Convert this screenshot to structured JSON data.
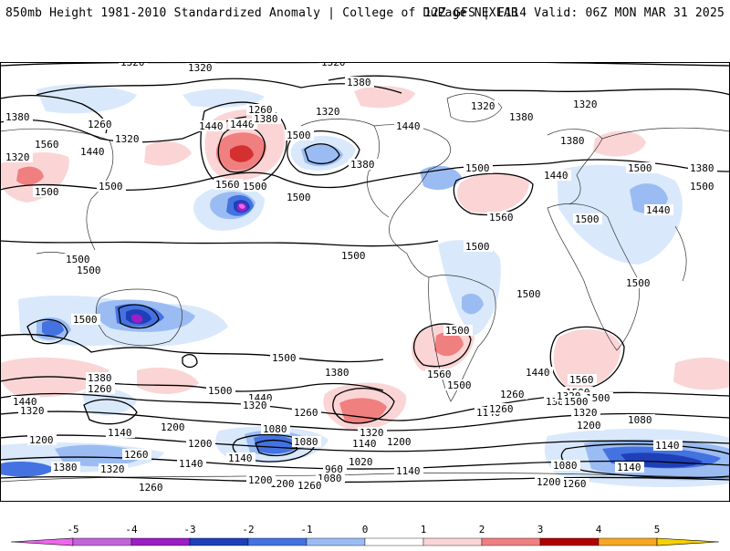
{
  "header": {
    "title": "850mb Height 1981-2010 Standardized Anomaly | College of DuPage NEXLAB",
    "run_info": "12Z GFS | F114 Valid: 06Z MON MAR 31 2025"
  },
  "map": {
    "contour_labels": {
      "c1": "1320",
      "c2": "1320",
      "c3": "1320",
      "c4": "1380",
      "c5": "1380",
      "c6": "1260",
      "c7": "1320",
      "c8": "1260",
      "c9": "1440",
      "c10": "1380",
      "c11": "1320",
      "c12": "1560",
      "c13": "1440",
      "c14": "1500",
      "c15": "1500",
      "c16": "1560",
      "c17": "1500",
      "c18": "1500",
      "c19": "1380",
      "c20": "1500",
      "c21": "1440",
      "c22": "1320",
      "c23": "1380",
      "c24": "1320",
      "c25": "1380",
      "c26": "1440",
      "c27": "1500",
      "c28": "1380",
      "c29": "1560",
      "c30": "1500",
      "c31": "1440",
      "c32": "1500",
      "c33": "1500",
      "c34": "1500",
      "c35": "1500",
      "c36": "1500",
      "c37": "1500",
      "c38": "1500",
      "c39": "1500",
      "c40": "1500",
      "c41": "1500",
      "c42": "1380",
      "c43": "1260",
      "c44": "1440",
      "c45": "1320",
      "c46": "1500",
      "c47": "1440",
      "c48": "1320",
      "c49": "1260",
      "c50": "1380",
      "c51": "1560",
      "c52": "1500",
      "c53": "1560",
      "c54": "1500",
      "c55": "1440",
      "c56": "1380",
      "c57": "1320",
      "c58": "1260",
      "c59": "1200",
      "c60": "1140",
      "c61": "1200",
      "c62": "1080",
      "c63": "1320",
      "c64": "1200",
      "c65": "1140",
      "c66": "1140",
      "c67": "1200",
      "c68": "1080",
      "c69": "1260",
      "c70": "1140",
      "c71": "1020",
      "c72": "960",
      "c73": "1080",
      "c74": "1140",
      "c75": "1200",
      "c76": "1200",
      "c77": "1260",
      "c78": "1380",
      "c79": "1320",
      "c80": "1260",
      "c81": "1080",
      "c82": "1140",
      "c83": "1260",
      "c84": "1200",
      "c85": "1140",
      "c86": "1080",
      "c87": "1200",
      "c88": "1260",
      "c89": "1140",
      "c90": "1500",
      "c91": "1500",
      "c92": "1440",
      "c93": "1320",
      "c94": "1320",
      "c95": "1500"
    }
  },
  "colorbar": {
    "ticks": [
      "-5",
      "-4",
      "-3",
      "-2",
      "-1",
      "0",
      "1",
      "2",
      "3",
      "4",
      "5"
    ],
    "colors": [
      "#ee66ee",
      "#9a1fc4",
      "#1e3fb8",
      "#4472e0",
      "#9bbcf3",
      "#d9e9fb",
      "#ffffff",
      "#fbd5d5",
      "#f08080",
      "#d43030",
      "#b00000",
      "#f5a623",
      "#f7d000"
    ]
  }
}
